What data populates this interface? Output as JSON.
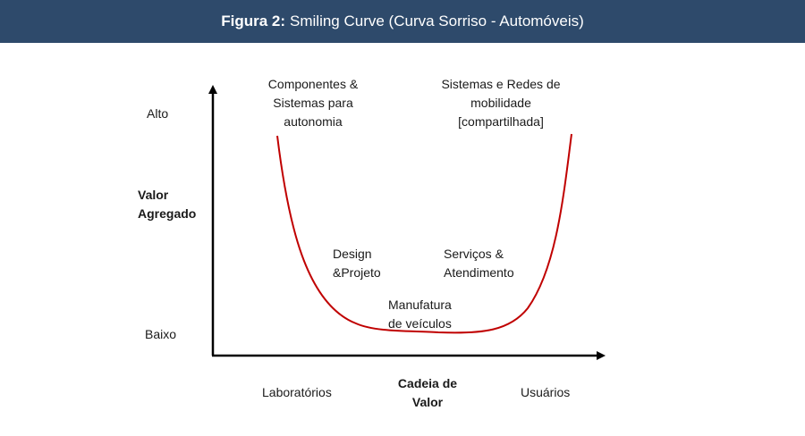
{
  "title": {
    "bold": "Figura 2:",
    "text": "Smiling Curve (Curva Sorriso - Automóveis)"
  },
  "y_axis": {
    "label_line1": "Valor",
    "label_line2": "Agregado",
    "high": "Alto",
    "low": "Baixo"
  },
  "x_axis": {
    "label_line1": "Cadeia de",
    "label_line2": "Valor",
    "left": "Laboratórios",
    "right": "Usuários"
  },
  "annotations": {
    "top_left": [
      "Componentes &",
      "Sistemas para",
      "autonomia"
    ],
    "top_right": [
      "Sistemas e Redes de",
      "mobilidade",
      "[compartilhada]"
    ],
    "mid_left": [
      "Design",
      "&Projeto"
    ],
    "mid_right": [
      "Serviços &",
      "Atendimento"
    ],
    "bottom": [
      "Manufatura",
      "de veículos"
    ]
  },
  "colors": {
    "header_bg": "#2e4a6b",
    "curve": "#c00000",
    "axis": "#000000"
  }
}
